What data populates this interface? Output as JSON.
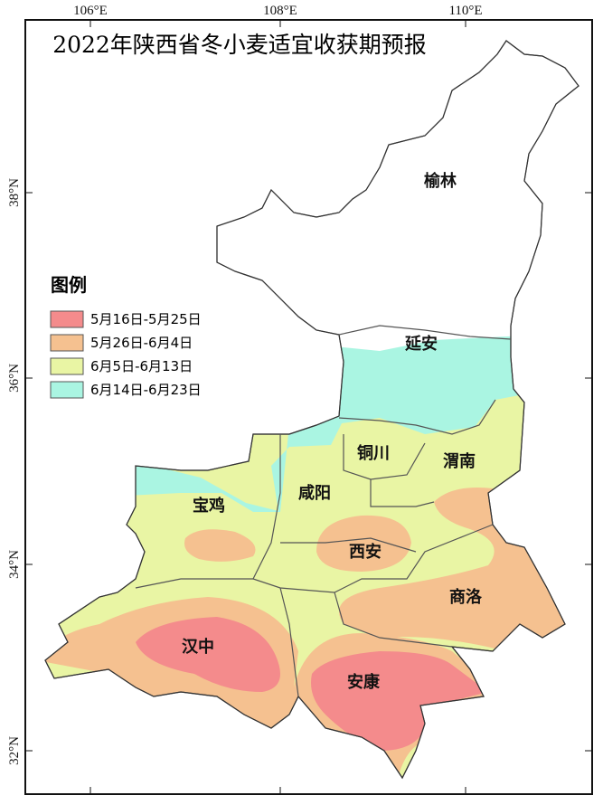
{
  "title": "2022年陕西省冬小麦适宜收获期预报",
  "lon_labels": [
    "106°E",
    "108°E",
    "110°E"
  ],
  "lat_labels": [
    "38°N",
    "36°N",
    "34°N",
    "32°N"
  ],
  "legend": {
    "title": "图例",
    "items": [
      {
        "name": "5月16日-5月25日",
        "color": "#f48b8c"
      },
      {
        "name": "5月26日-6月4日",
        "color": "#f5c190"
      },
      {
        "name": "6月5日-6月13日",
        "color": "#e9f5a4"
      },
      {
        "name": "6月14日-6月23日",
        "color": "#aaf5e2"
      }
    ]
  },
  "places": [
    "榆林",
    "延安",
    "铜川",
    "渭南",
    "宝鸡",
    "咸阳",
    "西安",
    "商洛",
    "汉中",
    "安康"
  ]
}
